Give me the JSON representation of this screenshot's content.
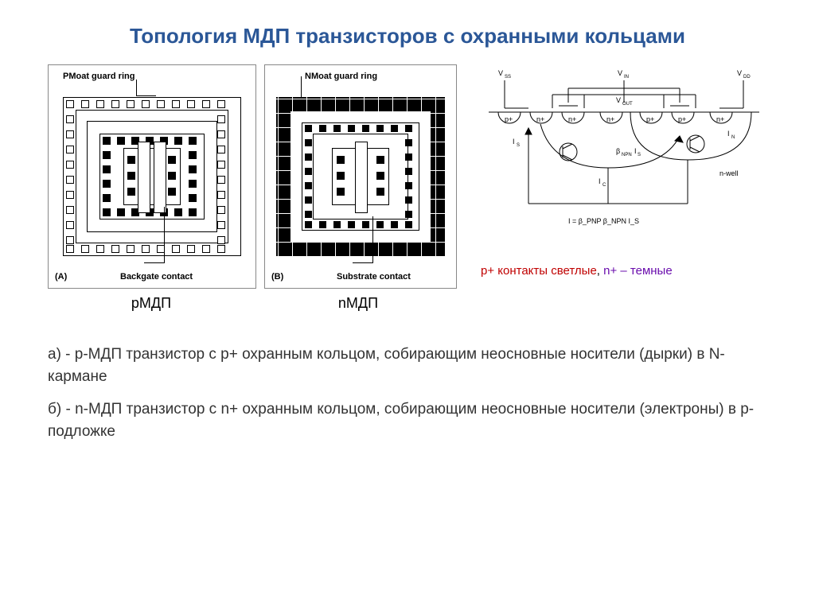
{
  "title": "Топология МДП транзисторов с охранными кольцами",
  "fig_a": {
    "top_label": "PMoat guard ring",
    "bottom_label": "Backgate contact",
    "tag": "(A)",
    "sub": "pМДП",
    "outer_ring_dark": false,
    "inner_ring_dark": true,
    "contact_size": 12,
    "contact_gap": 6
  },
  "fig_b": {
    "top_label": "NMoat guard ring",
    "bottom_label": "Substrate contact",
    "tag": "(B)",
    "sub": "nМДП",
    "outer_ring_dark": true,
    "inner_ring_dark": false,
    "contact_size": 12,
    "contact_gap": 3
  },
  "cross_section": {
    "top_labels": [
      "V_SS",
      "V_IN",
      "V_DD"
    ],
    "vout": "V_OUT",
    "diffusions": [
      "p+",
      "n+",
      "n+",
      "n+",
      "p+",
      "p+",
      "n+"
    ],
    "currents": [
      "I_S",
      "I_C",
      "I_N"
    ],
    "nwell": "n-well",
    "eq": "I = β_PNP β_NPN I_S"
  },
  "legend": {
    "p": "p+ контакты светлые",
    "n": "n+ – темные"
  },
  "desc_a": "а) - p-МДП транзистор с p+ охранным кольцом, собирающим неосновные носители (дырки) в N-кармане",
  "desc_b": "б) - n-МДП транзистор с n+ охранным кольцом, собирающим неосновные носители (электроны) в p-подложке",
  "colors": {
    "title": "#2b5797",
    "border": "#888888",
    "black": "#000000",
    "bg": "#ffffff",
    "legend_p": "#c00000",
    "legend_n": "#6a0dad"
  }
}
